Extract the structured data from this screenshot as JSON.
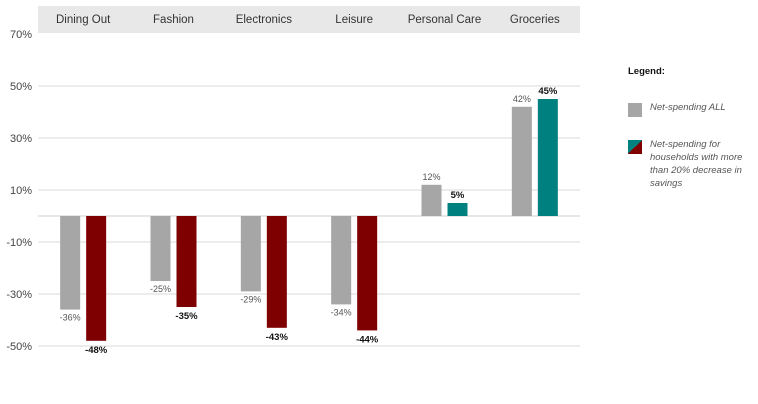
{
  "chart_data": {
    "type": "bar",
    "categories": [
      "Dining Out",
      "Fashion",
      "Electronics",
      "Leisure",
      "Personal Care",
      "Groceries"
    ],
    "series": [
      {
        "name": "Net-spending ALL",
        "values": [
          -36,
          -25,
          -29,
          -34,
          12,
          42
        ],
        "labels": [
          "-36%",
          "-25%",
          "-29%",
          "-34%",
          "12%",
          "42%"
        ]
      },
      {
        "name": "Net-spending for households with more than 20% decrease in savings",
        "values": [
          -48,
          -35,
          -43,
          -44,
          5,
          45
        ],
        "labels": [
          "-48%",
          "-35%",
          "-43%",
          "-44%",
          "5%",
          "45%"
        ]
      }
    ],
    "yticks": [
      70,
      50,
      30,
      10,
      -10,
      -30,
      -50
    ],
    "ytick_labels": [
      "70%",
      "50%",
      "30%",
      "10%",
      "-10%",
      "-30%",
      "-50%"
    ],
    "ylim": [
      -50,
      70
    ],
    "xlabel": "",
    "ylabel": "",
    "title": ""
  },
  "colors": {
    "all": "#a6a6a6",
    "negative": "#7f0000",
    "positive": "#00807f",
    "header_bg": "#e8e8e8",
    "grid": "#d9d9d9"
  },
  "legend": {
    "title": "Legend:",
    "items": [
      {
        "label": "Net-spending ALL"
      },
      {
        "label": "Net-spending for households with more than 20% decrease in savings"
      }
    ]
  }
}
